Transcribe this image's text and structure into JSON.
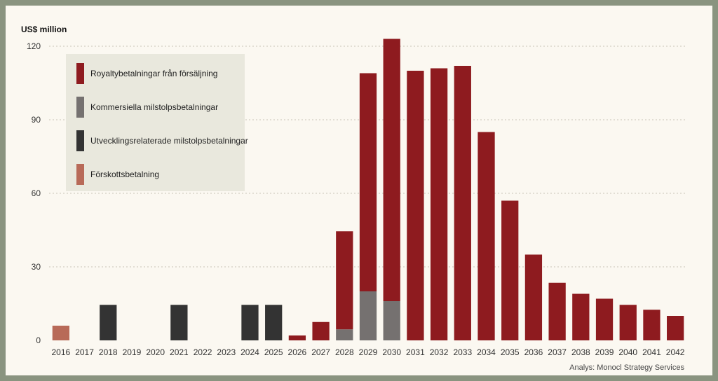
{
  "chart_data": {
    "type": "bar",
    "stacked": true,
    "y_unit_label": "US$ million",
    "ylim": [
      0,
      120
    ],
    "yticks": [
      0,
      30,
      60,
      90,
      120
    ],
    "grid": "horizontal dashed",
    "legend_placement": "top-left",
    "categories": [
      "2016",
      "2017",
      "2018",
      "2019",
      "2020",
      "2021",
      "2022",
      "2023",
      "2024",
      "2025",
      "2026",
      "2027",
      "2028",
      "2029",
      "2030",
      "2031",
      "2032",
      "2033",
      "2034",
      "2035",
      "2036",
      "2037",
      "2038",
      "2039",
      "2040",
      "2041",
      "2042"
    ],
    "series": [
      {
        "name": "Förskottsbetalning",
        "color": "#b86a58",
        "values": [
          6,
          0,
          0,
          0,
          0,
          0,
          0,
          0,
          0,
          0,
          0,
          0,
          0,
          0,
          0,
          0,
          0,
          0,
          0,
          0,
          0,
          0,
          0,
          0,
          0,
          0,
          0
        ]
      },
      {
        "name": "Utvecklingsrelaterade milstolpsbetalningar",
        "color": "#333333",
        "values": [
          0,
          0,
          14.5,
          0,
          0,
          14.5,
          0,
          0,
          14.5,
          14.5,
          0,
          0,
          0,
          0,
          0,
          0,
          0,
          0,
          0,
          0,
          0,
          0,
          0,
          0,
          0,
          0,
          0
        ]
      },
      {
        "name": "Kommersiella milstolpsbetalningar",
        "color": "#757170",
        "values": [
          0,
          0,
          0,
          0,
          0,
          0,
          0,
          0,
          0,
          0,
          0,
          0,
          4.5,
          20,
          16,
          0,
          0,
          0,
          0,
          0,
          0,
          0,
          0,
          0,
          0,
          0,
          0
        ]
      },
      {
        "name": "Royaltybetalningar från försäljning",
        "color": "#8e1b1f",
        "values": [
          0,
          0,
          0,
          0,
          0,
          0,
          0,
          0,
          0,
          0,
          2,
          7.5,
          40,
          89,
          107,
          110,
          111,
          112,
          85,
          57,
          35,
          23.5,
          19,
          17,
          14.5,
          12.5,
          10
        ]
      }
    ],
    "legend_order": [
      3,
      2,
      1,
      0
    ],
    "credit": "Analys: Monocl Strategy Services"
  }
}
